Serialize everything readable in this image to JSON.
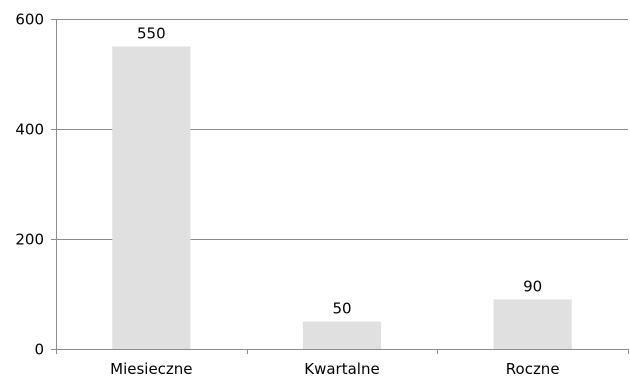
{
  "chart_data": {
    "type": "bar",
    "title": "",
    "xlabel": "",
    "ylabel": "",
    "categories": [
      "Miesieczne",
      "Kwartalne",
      "Roczne"
    ],
    "values": [
      550,
      50,
      90
    ],
    "data_labels": [
      "550",
      "50",
      "90"
    ],
    "ylim": [
      0,
      600
    ],
    "yticks": [
      0,
      200,
      400,
      600
    ],
    "ytick_labels": [
      "0",
      "200",
      "400",
      "600"
    ],
    "grid": true,
    "legend": "none",
    "colors": {
      "bar": "#e0e0e0",
      "grid": "#8c8c8c",
      "axis": "#8c8c8c",
      "text": "#000000"
    }
  }
}
